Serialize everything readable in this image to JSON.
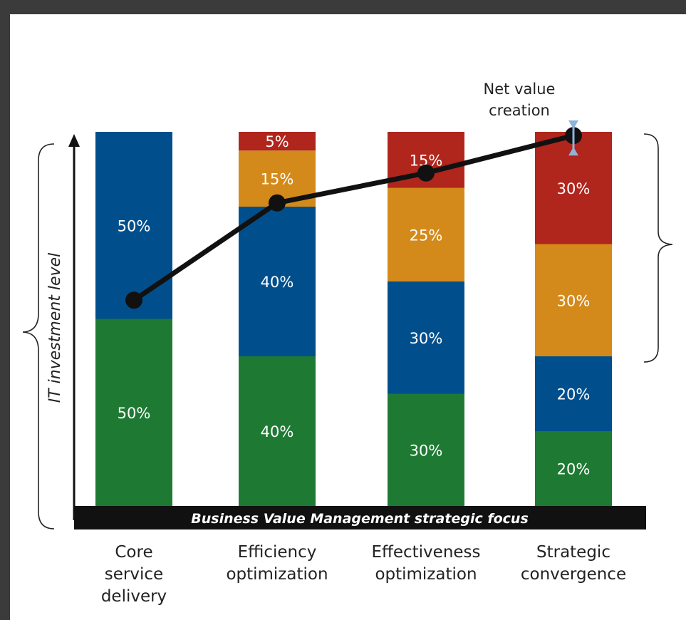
{
  "chart_data": {
    "type": "bar",
    "stacked": true,
    "categories": [
      [
        "Core",
        "service",
        "delivery"
      ],
      [
        "Efficiency",
        "optimization"
      ],
      [
        "Effectiveness",
        "optimization"
      ],
      [
        "Strategic",
        "convergence"
      ]
    ],
    "series": [
      {
        "color": "#1e7a33",
        "values": [
          50,
          40,
          30,
          20
        ]
      },
      {
        "color": "#004f8c",
        "values": [
          50,
          40,
          30,
          20
        ]
      },
      {
        "color": "#d48a1a",
        "values": [
          0,
          15,
          25,
          30
        ]
      },
      {
        "color": "#b0251c",
        "values": [
          0,
          5,
          15,
          30
        ]
      }
    ],
    "value_format": "{v}%",
    "line": {
      "color": "#111111",
      "values": [
        55,
        81,
        89,
        99
      ]
    },
    "ylim": [
      0,
      100
    ],
    "ylabel": "IT investment level",
    "band_label": "Business Value Management strategic focus",
    "annotation": [
      "Net value",
      "creation"
    ],
    "annotation_arrow_color": "#8fb3d9",
    "grid": false,
    "legend": "none"
  }
}
